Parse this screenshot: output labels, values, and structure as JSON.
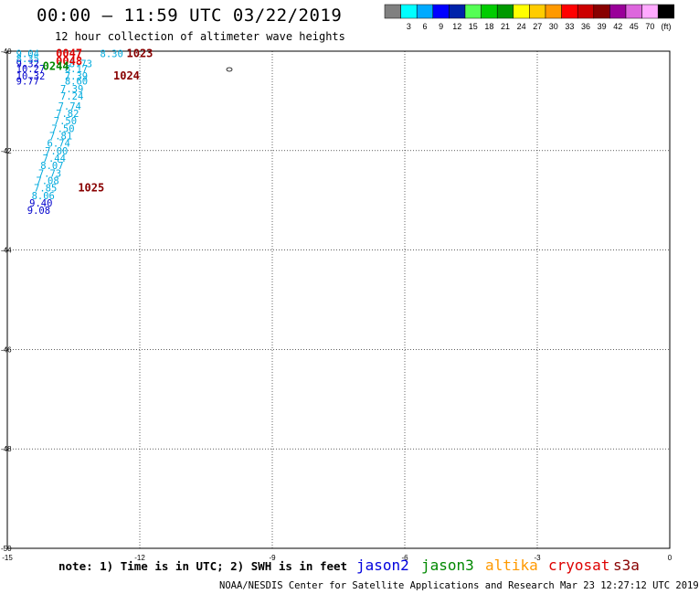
{
  "title": "00:00 – 11:59 UTC 03/22/2019",
  "subtitle": "12 hour collection of altimeter wave heights",
  "note": "note: 1) Time is in UTC; 2) SWH is in feet",
  "credit": "NOAA/NESDIS Center for Satellite Applications and Research   Mar 23 12:27:12 UTC 2019",
  "legend": {
    "scale": [
      {
        "color": "#808080",
        "label": ""
      },
      {
        "color": "#00ffff",
        "label": "3"
      },
      {
        "color": "#00aaff",
        "label": "6"
      },
      {
        "color": "#0000ff",
        "label": "9"
      },
      {
        "color": "#0022aa",
        "label": "12"
      },
      {
        "color": "#55ff55",
        "label": "15"
      },
      {
        "color": "#00cc00",
        "label": "18"
      },
      {
        "color": "#009900",
        "label": "21"
      },
      {
        "color": "#ffff00",
        "label": "24"
      },
      {
        "color": "#ffcc00",
        "label": "27"
      },
      {
        "color": "#ff9900",
        "label": "30"
      },
      {
        "color": "#ff0000",
        "label": "33"
      },
      {
        "color": "#cc0000",
        "label": "36"
      },
      {
        "color": "#880000",
        "label": "39"
      },
      {
        "color": "#990099",
        "label": "42"
      },
      {
        "color": "#dd66dd",
        "label": "45"
      },
      {
        "color": "#ffaaff",
        "label": "70"
      },
      {
        "color": "#000000",
        "label": "(ft)"
      }
    ]
  },
  "satellites": [
    {
      "name": "jason2",
      "color": "#0000dd"
    },
    {
      "name": "jason3",
      "color": "#008800"
    },
    {
      "name": "altika",
      "color": "#ff9900"
    },
    {
      "name": "cryosat",
      "color": "#dd0000"
    },
    {
      "name": "s3a",
      "color": "#880000"
    }
  ],
  "map": {
    "x_ticks": [
      "-15",
      "-12",
      "-9",
      "-6",
      "-3",
      "0"
    ],
    "y_ticks": [
      "-40",
      "-42",
      "-44",
      "-46",
      "-48",
      "-50"
    ],
    "lon_range": [
      -15,
      0
    ],
    "lat_range": [
      -50,
      -40
    ],
    "grid": "dotted"
  },
  "chart_data": {
    "type": "scatter",
    "xlabel": "",
    "ylabel": "",
    "xlim": [
      -15,
      0
    ],
    "ylim": [
      -50,
      -40
    ],
    "wave_heights": [
      {
        "lon": -14.8,
        "lat": -40.05,
        "label": "9.04",
        "color": "#00aadd"
      },
      {
        "lon": -12.9,
        "lat": -40.05,
        "label": "8.30",
        "color": "#00aadd"
      },
      {
        "lon": -14.8,
        "lat": -40.15,
        "label": "8.35",
        "color": "#00aadd"
      },
      {
        "lon": -13.6,
        "lat": -40.25,
        "label": "8.73",
        "color": "#00aadd"
      },
      {
        "lon": -14.8,
        "lat": -40.25,
        "label": "9.32",
        "color": "#0000cc"
      },
      {
        "lon": -14.8,
        "lat": -40.35,
        "label": "10.27",
        "color": "#0000cc"
      },
      {
        "lon": -13.7,
        "lat": -40.35,
        "label": "8.17",
        "color": "#00aadd"
      },
      {
        "lon": -14.8,
        "lat": -40.5,
        "label": "10.32",
        "color": "#0000cc"
      },
      {
        "lon": -13.7,
        "lat": -40.5,
        "label": "7.39",
        "color": "#00aadd"
      },
      {
        "lon": -14.8,
        "lat": -40.6,
        "label": "9.77",
        "color": "#0000cc"
      },
      {
        "lon": -13.7,
        "lat": -40.6,
        "label": "8.60",
        "color": "#00aadd"
      },
      {
        "lon": -13.8,
        "lat": -40.75,
        "label": "7.39",
        "color": "#00aadd"
      },
      {
        "lon": -13.8,
        "lat": -40.9,
        "label": "7.24",
        "color": "#00aadd"
      },
      {
        "lon": -13.85,
        "lat": -41.1,
        "label": "7.74",
        "color": "#00aadd"
      },
      {
        "lon": -13.9,
        "lat": -41.25,
        "label": "7.82",
        "color": "#00aadd"
      },
      {
        "lon": -13.95,
        "lat": -41.4,
        "label": "7.50",
        "color": "#00aadd"
      },
      {
        "lon": -14.0,
        "lat": -41.55,
        "label": "7.50",
        "color": "#00aadd"
      },
      {
        "lon": -14.05,
        "lat": -41.7,
        "label": "7.81",
        "color": "#00aadd"
      },
      {
        "lon": -14.1,
        "lat": -41.85,
        "label": "6.74",
        "color": "#00aadd"
      },
      {
        "lon": -14.15,
        "lat": -42.0,
        "label": "7.00",
        "color": "#00aadd"
      },
      {
        "lon": -14.2,
        "lat": -42.15,
        "label": "7.44",
        "color": "#00aadd"
      },
      {
        "lon": -14.25,
        "lat": -42.3,
        "label": "8.07",
        "color": "#00aadd"
      },
      {
        "lon": -14.3,
        "lat": -42.45,
        "label": "7.73",
        "color": "#00aadd"
      },
      {
        "lon": -14.35,
        "lat": -42.6,
        "label": "7.08",
        "color": "#00aadd"
      },
      {
        "lon": -14.4,
        "lat": -42.75,
        "label": "7.85",
        "color": "#00aadd"
      },
      {
        "lon": -14.45,
        "lat": -42.9,
        "label": "8.06",
        "color": "#00aadd"
      },
      {
        "lon": -14.5,
        "lat": -43.05,
        "label": "9.40",
        "color": "#0000cc"
      },
      {
        "lon": -14.55,
        "lat": -43.2,
        "label": "9.08",
        "color": "#0000cc"
      }
    ],
    "time_labels": [
      {
        "lon": -13.9,
        "lat": -40.05,
        "label": "0047",
        "color": "#dd0000"
      },
      {
        "lon": -13.9,
        "lat": -40.2,
        "label": "0048",
        "color": "#dd0000"
      },
      {
        "lon": -14.2,
        "lat": -40.3,
        "label": "0244",
        "color": "#008800"
      },
      {
        "lon": -12.3,
        "lat": -40.05,
        "label": "1023",
        "color": "#880000"
      },
      {
        "lon": -12.6,
        "lat": -40.5,
        "label": "1024",
        "color": "#880000"
      },
      {
        "lon": -13.4,
        "lat": -42.75,
        "label": "1025",
        "color": "#880000"
      }
    ]
  }
}
